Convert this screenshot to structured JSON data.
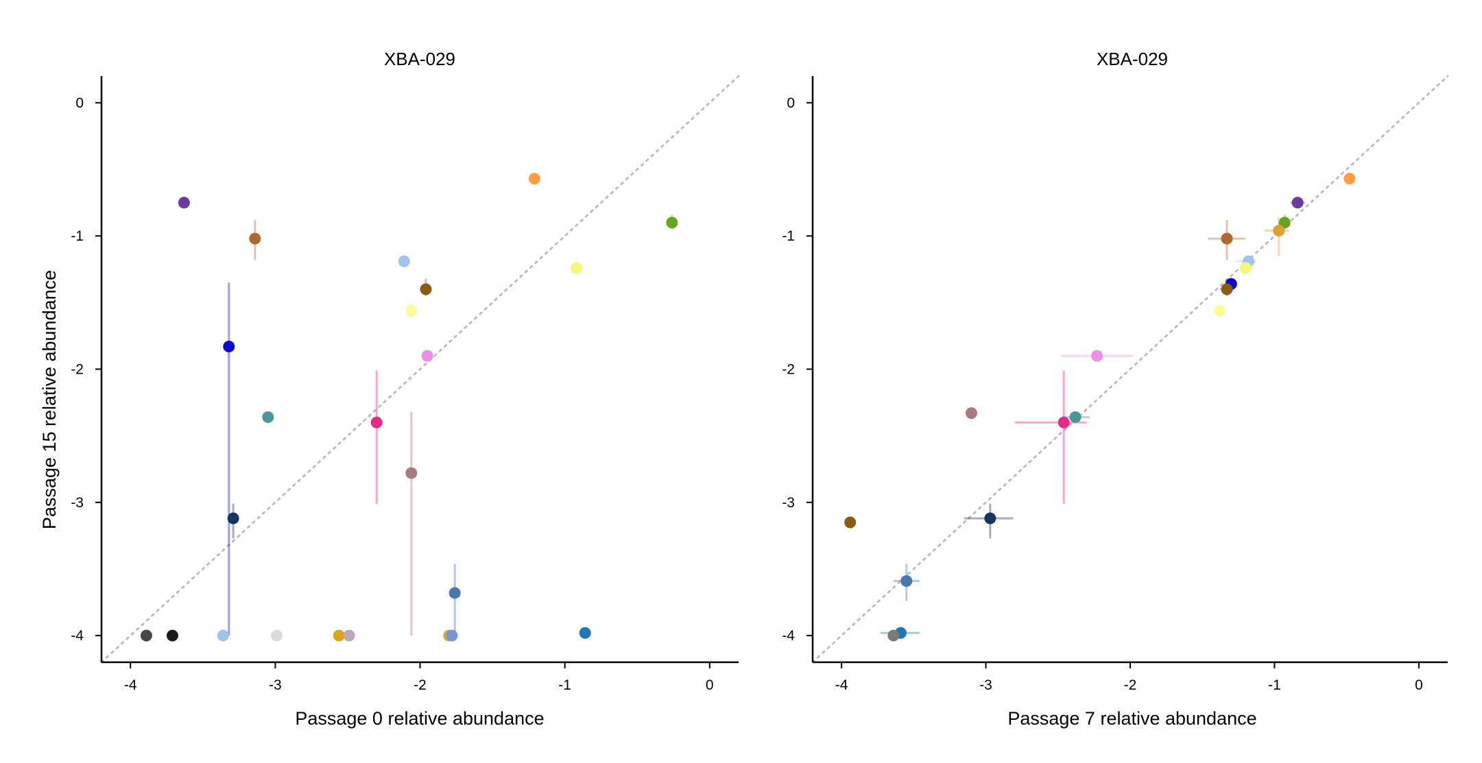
{
  "colors": {
    "diagonal": "#bdbdbd",
    "axis": "#000000"
  },
  "chart_data": [
    {
      "type": "scatter",
      "title": "XBA-029",
      "xlabel": "Passage 0 relative abundance",
      "ylabel": "Passage 15 relative abundance",
      "xlim": [
        -4.2,
        0.2
      ],
      "ylim": [
        -4.2,
        0.2
      ],
      "xticks": [
        -4,
        -3,
        -2,
        -1,
        0
      ],
      "yticks": [
        -4,
        -3,
        -2,
        -1,
        0
      ],
      "xtick_labels": [
        "-4",
        "-3",
        "-2",
        "-1",
        "0"
      ],
      "ytick_labels": [
        "-4",
        "-3",
        "-2",
        "-1",
        "0"
      ],
      "reference_line": "y = x (dotted)",
      "grid": false,
      "points": [
        {
          "x": -3.63,
          "y": -0.75,
          "color": "#6a3d9a",
          "ylo": -0.75,
          "yhi": -0.75
        },
        {
          "x": -3.14,
          "y": -1.02,
          "color": "#b0682f",
          "ylo": -1.18,
          "yhi": -0.88
        },
        {
          "x": -1.21,
          "y": -0.57,
          "color": "#fd9e45",
          "ylo": -0.6,
          "yhi": -0.53
        },
        {
          "x": -0.26,
          "y": -0.9,
          "color": "#66a61e",
          "ylo": -0.95,
          "yhi": -0.84
        },
        {
          "x": -2.11,
          "y": -1.19,
          "color": "#9ec4ef",
          "ylo": -1.19,
          "yhi": -1.19
        },
        {
          "x": -0.92,
          "y": -1.24,
          "color": "#f5f77a",
          "ylo": -1.27,
          "yhi": -1.21
        },
        {
          "x": -1.96,
          "y": -1.4,
          "color": "#8c5c0e",
          "ylo": -1.45,
          "yhi": -1.32
        },
        {
          "x": -2.06,
          "y": -1.56,
          "color": "#fcfc9a",
          "ylo": -1.56,
          "yhi": -1.56
        },
        {
          "x": -1.95,
          "y": -1.9,
          "color": "#ee8eec",
          "ylo": -1.9,
          "yhi": -1.9
        },
        {
          "x": -3.32,
          "y": -1.83,
          "color": "#0b0bcf",
          "ylo": -4.0,
          "yhi": -1.35
        },
        {
          "x": -3.05,
          "y": -2.36,
          "color": "#4a969a",
          "ylo": -2.36,
          "yhi": -2.36
        },
        {
          "x": -2.3,
          "y": -2.4,
          "color": "#e7298a",
          "ylo": -3.01,
          "yhi": -2.01
        },
        {
          "x": -2.06,
          "y": -2.78,
          "color": "#a8797f",
          "ylo": -4.0,
          "yhi": -2.32
        },
        {
          "x": -3.29,
          "y": -3.12,
          "color": "#16355e",
          "ylo": -3.27,
          "yhi": -3.01
        },
        {
          "x": -1.76,
          "y": -3.68,
          "color": "#4b77ad",
          "ylo": -4.0,
          "yhi": -3.46
        },
        {
          "x": -0.86,
          "y": -3.98,
          "color": "#1f78b4",
          "ylo": -3.98,
          "yhi": -3.98
        },
        {
          "x": -3.89,
          "y": -4.0,
          "color": "#474747",
          "ylo": -4.0,
          "yhi": -4.0
        },
        {
          "x": -3.71,
          "y": -4.0,
          "color": "#1a1a1a",
          "ylo": -4.0,
          "yhi": -4.0
        },
        {
          "x": -3.36,
          "y": -4.0,
          "color": "#9ec4ef",
          "ylo": -4.0,
          "yhi": -4.0
        },
        {
          "x": -2.99,
          "y": -4.0,
          "color": "#dcdcdc",
          "ylo": -4.0,
          "yhi": -4.0
        },
        {
          "x": -2.56,
          "y": -4.0,
          "color": "#d9a520",
          "ylo": -4.0,
          "yhi": -4.0
        },
        {
          "x": -2.49,
          "y": -4.0,
          "color": "#bca8b8",
          "ylo": -4.0,
          "yhi": -4.0
        },
        {
          "x": -1.8,
          "y": -4.0,
          "color": "#c9ae3e",
          "ylo": -4.0,
          "yhi": -4.0
        },
        {
          "x": -1.78,
          "y": -4.0,
          "color": "#7896d4",
          "ylo": -4.0,
          "yhi": -4.0
        }
      ]
    },
    {
      "type": "scatter",
      "title": "XBA-029",
      "xlabel": "Passage 7 relative abundance",
      "ylabel": "",
      "xlim": [
        -4.2,
        0.2
      ],
      "ylim": [
        -4.2,
        0.2
      ],
      "xticks": [
        -4,
        -3,
        -2,
        -1,
        0
      ],
      "yticks": [
        -4,
        -3,
        -2,
        -1,
        0
      ],
      "xtick_labels": [
        "-4",
        "-3",
        "-2",
        "-1",
        "0"
      ],
      "ytick_labels": [
        "-4",
        "-3",
        "-2",
        "-1",
        "0"
      ],
      "reference_line": "y = x (dotted)",
      "grid": false,
      "points": [
        {
          "x": -0.48,
          "y": -0.57,
          "color": "#fd9e45",
          "xlo": -0.48,
          "xhi": -0.48,
          "ylo": -0.57,
          "yhi": -0.57
        },
        {
          "x": -0.84,
          "y": -0.75,
          "color": "#6a3d9a",
          "xlo": -0.89,
          "xhi": -0.79,
          "ylo": -0.75,
          "yhi": -0.75
        },
        {
          "x": -0.93,
          "y": -0.9,
          "color": "#66a61e",
          "xlo": -0.97,
          "xhi": -0.9,
          "ylo": -0.95,
          "yhi": -0.84
        },
        {
          "x": -0.97,
          "y": -0.96,
          "color": "#e0a030",
          "xlo": -1.07,
          "xhi": -0.9,
          "ylo": -1.15,
          "yhi": -0.86
        },
        {
          "x": -1.33,
          "y": -1.02,
          "color": "#b0682f",
          "xlo": -1.46,
          "xhi": -1.2,
          "ylo": -1.18,
          "yhi": -0.88
        },
        {
          "x": -1.18,
          "y": -1.19,
          "color": "#9ec4ef",
          "xlo": -1.27,
          "xhi": -1.13,
          "ylo": -1.19,
          "yhi": -1.19
        },
        {
          "x": -1.2,
          "y": -1.24,
          "color": "#f5f77a",
          "xlo": -1.24,
          "xhi": -1.17,
          "ylo": -1.27,
          "yhi": -1.21
        },
        {
          "x": -1.3,
          "y": -1.36,
          "color": "#0b0bcf",
          "xlo": -1.34,
          "xhi": -1.27,
          "ylo": -1.4,
          "yhi": -1.32
        },
        {
          "x": -1.33,
          "y": -1.4,
          "color": "#8c5c0e",
          "xlo": -1.38,
          "xhi": -1.28,
          "ylo": -1.45,
          "yhi": -1.32
        },
        {
          "x": -1.38,
          "y": -1.56,
          "color": "#fcfc9a",
          "xlo": -1.38,
          "xhi": -1.38,
          "ylo": -1.56,
          "yhi": -1.56
        },
        {
          "x": -2.23,
          "y": -1.9,
          "color": "#ee8eec",
          "xlo": -2.48,
          "xhi": -1.98,
          "ylo": -1.9,
          "yhi": -1.9
        },
        {
          "x": -3.1,
          "y": -2.33,
          "color": "#a8797f",
          "xlo": -3.1,
          "xhi": -3.1,
          "ylo": -2.33,
          "yhi": -2.33
        },
        {
          "x": -2.38,
          "y": -2.36,
          "color": "#4a969a",
          "xlo": -2.47,
          "xhi": -2.28,
          "ylo": -2.36,
          "yhi": -2.36
        },
        {
          "x": -2.46,
          "y": -2.4,
          "color": "#e7298a",
          "xlo": -2.8,
          "xhi": -2.3,
          "ylo": -3.01,
          "yhi": -2.01
        },
        {
          "x": -2.97,
          "y": -3.12,
          "color": "#16355e",
          "xlo": -3.15,
          "xhi": -2.81,
          "ylo": -3.27,
          "yhi": -3.01
        },
        {
          "x": -3.94,
          "y": -3.15,
          "color": "#8c5c0e",
          "xlo": -3.94,
          "xhi": -3.94,
          "ylo": -3.15,
          "yhi": -3.15
        },
        {
          "x": -3.55,
          "y": -3.59,
          "color": "#4b77ad",
          "xlo": -3.64,
          "xhi": -3.46,
          "ylo": -3.74,
          "yhi": -3.46
        },
        {
          "x": -3.59,
          "y": -3.98,
          "color": "#1f78b4",
          "xlo": -3.73,
          "xhi": -3.46,
          "ylo": -3.98,
          "yhi": -3.98
        },
        {
          "x": -3.64,
          "y": -4.0,
          "color": "#7a7a7a",
          "xlo": -3.64,
          "xhi": -3.64,
          "ylo": -4.0,
          "yhi": -4.0
        }
      ]
    }
  ]
}
